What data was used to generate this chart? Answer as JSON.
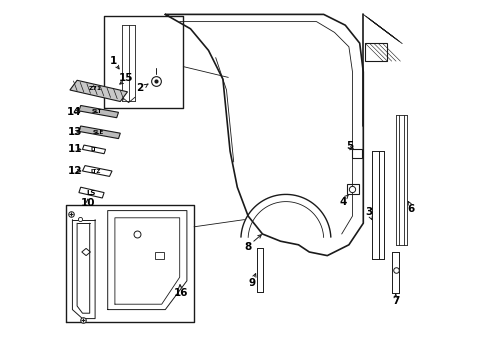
{
  "bg_color": "#ffffff",
  "line_color": "#1a1a1a",
  "figsize": [
    4.89,
    3.6
  ],
  "dpi": 100,
  "xlim": [
    0,
    10
  ],
  "ylim": [
    0,
    10
  ]
}
